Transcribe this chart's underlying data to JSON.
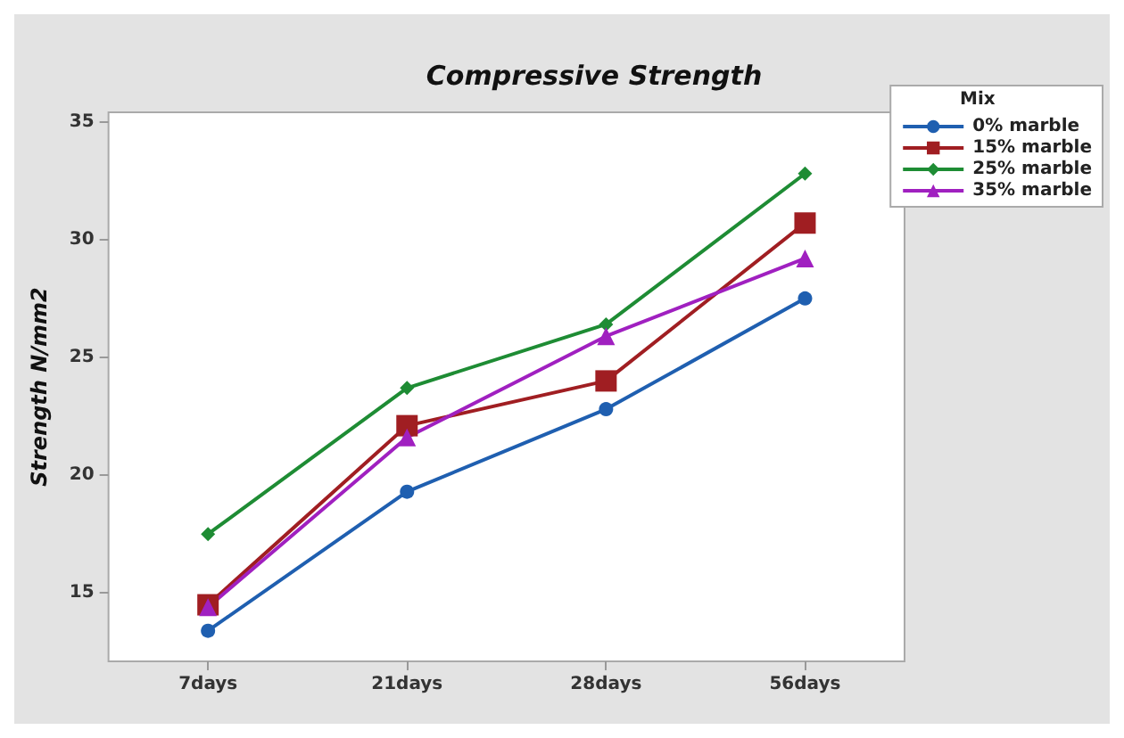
{
  "chart_data": {
    "type": "line",
    "title": "Compressive Strength",
    "ylabel": "Strength N/mm2",
    "legend_title": "Mix",
    "legend": "top right",
    "grid": false,
    "categories": [
      "7days",
      "21days",
      "28days",
      "56days"
    ],
    "ylim": [
      12.1,
      35.4
    ],
    "yticks": [
      15,
      20,
      25,
      30,
      35
    ],
    "series": [
      {
        "name": "0% marble",
        "color": "#1f5fb0",
        "marker": "circle",
        "values": [
          13.4,
          19.3,
          22.8,
          27.5
        ]
      },
      {
        "name": "15% marble",
        "color": "#a01e22",
        "marker": "square",
        "values": [
          14.5,
          22.1,
          24.0,
          30.7
        ]
      },
      {
        "name": "25% marble",
        "color": "#1e8c34",
        "marker": "diamond",
        "values": [
          17.5,
          23.7,
          26.4,
          32.8
        ]
      },
      {
        "name": "35% marble",
        "color": "#a020c0",
        "marker": "triangle",
        "values": [
          14.4,
          21.6,
          25.9,
          29.2
        ]
      }
    ]
  }
}
